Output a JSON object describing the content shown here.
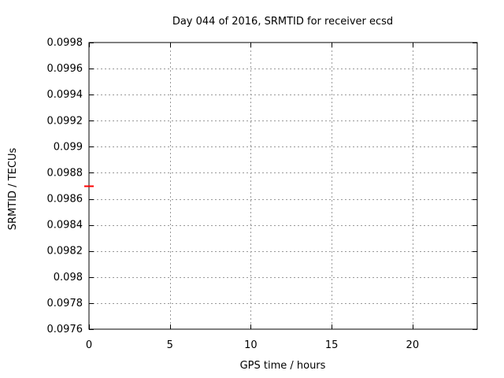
{
  "page": {
    "background": "#ffffff"
  },
  "chart_data": {
    "type": "scatter",
    "title": "Day 044 of 2016, SRMTID for receiver ecsd",
    "xlabel": "GPS time / hours",
    "ylabel": "SRMTID / TECUs",
    "xlim": [
      0,
      24
    ],
    "ylim": [
      0.0976,
      0.0998
    ],
    "xticks": [
      0,
      5,
      10,
      15,
      20
    ],
    "xtick_labels": [
      "0",
      "5",
      "10",
      "15",
      "20"
    ],
    "yticks": [
      0.0976,
      0.0978,
      0.098,
      0.0982,
      0.0984,
      0.0986,
      0.0988,
      0.099,
      0.0992,
      0.0994,
      0.0996,
      0.0998
    ],
    "ytick_labels": [
      "0.0976",
      "0.0978",
      "0.098",
      "0.0982",
      "0.0984",
      "0.0986",
      "0.0988",
      "0.099",
      "0.0992",
      "0.0994",
      "0.0996",
      "0.0998"
    ],
    "grid": true,
    "legend": "none",
    "series": [
      {
        "name": "SRMTID",
        "marker": "horizontal-dash",
        "color": "#ff0000",
        "points": [
          {
            "x": 0,
            "y": 0.0987
          }
        ]
      }
    ],
    "colors": {
      "axis": "#000000",
      "grid": "#999999",
      "text": "#000000"
    }
  }
}
